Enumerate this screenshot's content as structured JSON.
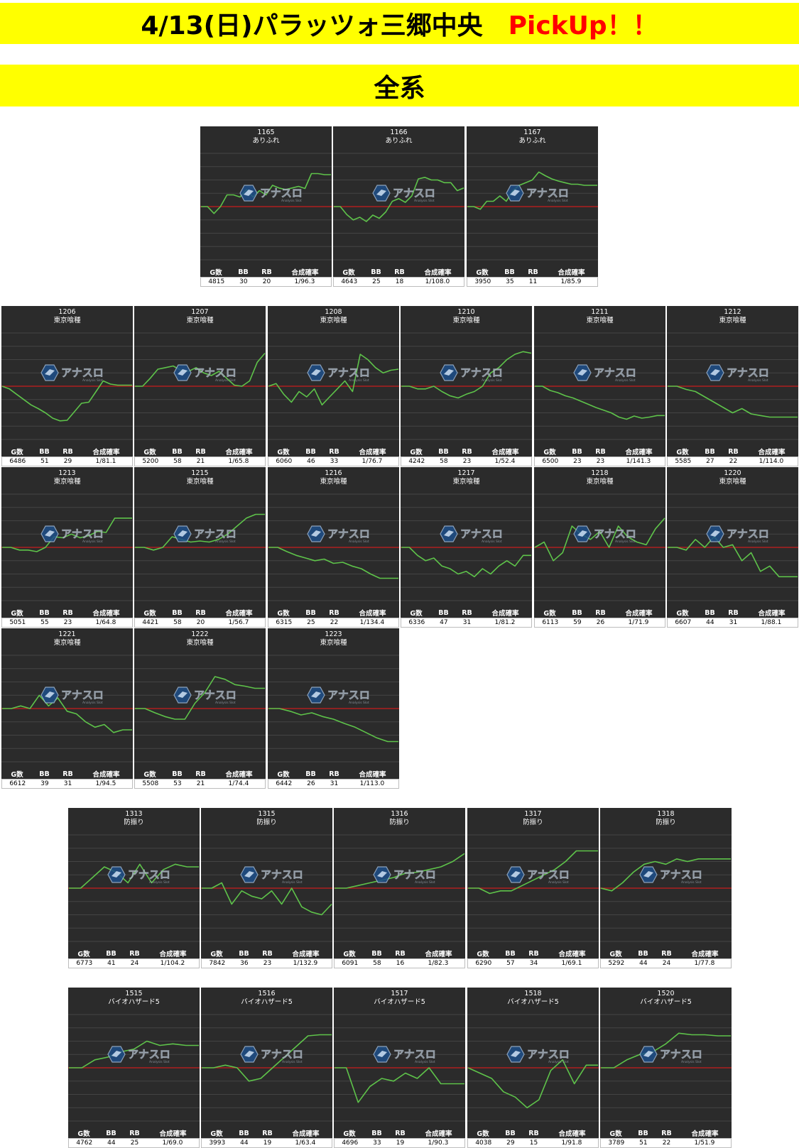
{
  "header": {
    "title": "4/13(日)パラッツォ三郷中央",
    "pickup": "PickUp！！",
    "section": "全系"
  },
  "stat_headers": [
    "G数",
    "BB",
    "RB",
    "合成確率"
  ],
  "watermark": {
    "text": "アナスロ",
    "sub": "Analysis Slot"
  },
  "colors": {
    "banner": "#ffff00",
    "pickup": "#ff0000",
    "panel": "#2b2b2b",
    "line": "#5ec34a",
    "baseline": "#c81e1e",
    "grid": "#444444"
  },
  "chart_data": [
    {
      "type": "line",
      "machine": "1165",
      "model": "ありふれ",
      "stats": {
        "games": "4815",
        "bb": "30",
        "rb": "20",
        "rate": "1/96.3"
      },
      "ylim": [
        -1,
        1
      ],
      "y": [
        0.0,
        0.0,
        -0.13,
        0.0,
        0.22,
        0.22,
        0.18,
        0.32,
        0.18,
        0.3,
        0.22,
        0.4,
        0.35,
        0.32,
        0.35,
        0.38,
        0.34,
        0.62,
        0.62,
        0.6,
        0.6
      ]
    },
    {
      "type": "line",
      "machine": "1166",
      "model": "ありふれ",
      "stats": {
        "games": "4643",
        "bb": "25",
        "rb": "18",
        "rate": "1/108.0"
      },
      "ylim": [
        -1,
        1
      ],
      "y": [
        0.0,
        0.0,
        -0.15,
        -0.25,
        -0.2,
        -0.28,
        -0.16,
        -0.22,
        -0.1,
        0.1,
        0.15,
        0.08,
        0.2,
        0.52,
        0.55,
        0.5,
        0.5,
        0.45,
        0.45,
        0.3,
        0.35
      ]
    },
    {
      "type": "line",
      "machine": "1167",
      "model": "ありふれ",
      "stats": {
        "games": "3950",
        "bb": "35",
        "rb": "11",
        "rate": "1/85.9"
      },
      "ylim": [
        -1,
        1
      ],
      "y": [
        0.0,
        0.0,
        -0.05,
        0.1,
        0.1,
        0.2,
        0.1,
        0.3,
        0.4,
        0.45,
        0.5,
        0.65,
        0.58,
        0.52,
        0.48,
        0.45,
        0.42,
        0.42,
        0.4,
        0.4,
        0.4
      ]
    },
    {
      "type": "line",
      "machine": "1206",
      "model": "東京喰種",
      "stats": {
        "games": "6486",
        "bb": "51",
        "rb": "29",
        "rate": "1/81.1"
      },
      "ylim": [
        -1,
        1
      ],
      "y": [
        0.0,
        -0.05,
        -0.15,
        -0.25,
        -0.35,
        -0.42,
        -0.5,
        -0.6,
        -0.65,
        -0.64,
        -0.48,
        -0.32,
        -0.3,
        -0.1,
        0.1,
        0.04,
        0.02,
        0.02,
        0.02
      ]
    },
    {
      "type": "line",
      "machine": "1207",
      "model": "東京喰種",
      "stats": {
        "games": "5200",
        "bb": "58",
        "rb": "21",
        "rate": "1/65.8"
      },
      "ylim": [
        -1,
        1
      ],
      "y": [
        0.0,
        0.0,
        0.15,
        0.32,
        0.35,
        0.38,
        0.3,
        0.28,
        0.35,
        0.25,
        0.2,
        0.28,
        0.15,
        0.02,
        0.0,
        0.1,
        0.45,
        0.62
      ]
    },
    {
      "type": "line",
      "machine": "1208",
      "model": "東京喰種",
      "stats": {
        "games": "6060",
        "bb": "46",
        "rb": "33",
        "rate": "1/76.7"
      },
      "ylim": [
        -1,
        1
      ],
      "y": [
        0.0,
        0.05,
        -0.15,
        -0.3,
        -0.1,
        -0.2,
        -0.05,
        -0.35,
        -0.2,
        -0.05,
        0.1,
        -0.1,
        0.6,
        0.5,
        0.35,
        0.25,
        0.3,
        0.32
      ]
    },
    {
      "type": "line",
      "machine": "1210",
      "model": "東京喰種",
      "stats": {
        "games": "4242",
        "bb": "58",
        "rb": "23",
        "rate": "1/52.4"
      },
      "ylim": [
        -1,
        1
      ],
      "y": [
        0.0,
        0.0,
        -0.05,
        -0.05,
        0.0,
        -0.1,
        -0.18,
        -0.22,
        -0.15,
        -0.1,
        0.0,
        0.25,
        0.35,
        0.5,
        0.6,
        0.65,
        0.62
      ]
    },
    {
      "type": "line",
      "machine": "1211",
      "model": "東京喰種",
      "stats": {
        "games": "6500",
        "bb": "23",
        "rb": "23",
        "rate": "1/141.3"
      },
      "ylim": [
        -1,
        1
      ],
      "y": [
        0.0,
        0.0,
        -0.08,
        -0.12,
        -0.18,
        -0.22,
        -0.28,
        -0.34,
        -0.4,
        -0.45,
        -0.5,
        -0.58,
        -0.62,
        -0.56,
        -0.6,
        -0.58,
        -0.55,
        -0.55
      ]
    },
    {
      "type": "line",
      "machine": "1212",
      "model": "東京喰種",
      "stats": {
        "games": "5585",
        "bb": "27",
        "rb": "22",
        "rate": "1/114.0"
      },
      "ylim": [
        -1,
        1
      ],
      "y": [
        0.0,
        0.0,
        -0.06,
        -0.1,
        -0.2,
        -0.3,
        -0.4,
        -0.5,
        -0.42,
        -0.52,
        -0.55,
        -0.58,
        -0.58,
        -0.58,
        -0.58
      ]
    },
    {
      "type": "line",
      "machine": "1213",
      "model": "東京喰種",
      "stats": {
        "games": "5051",
        "bb": "55",
        "rb": "23",
        "rate": "1/64.8"
      },
      "ylim": [
        -1,
        1
      ],
      "y": [
        0.0,
        0.0,
        -0.05,
        -0.05,
        -0.08,
        0.0,
        0.2,
        0.18,
        0.25,
        0.18,
        0.22,
        0.3,
        0.28,
        0.55,
        0.55,
        0.55
      ]
    },
    {
      "type": "line",
      "machine": "1215",
      "model": "東京喰種",
      "stats": {
        "games": "4421",
        "bb": "58",
        "rb": "20",
        "rate": "1/56.7"
      },
      "ylim": [
        -1,
        1
      ],
      "y": [
        0.0,
        0.0,
        -0.05,
        0.0,
        0.2,
        0.15,
        0.1,
        0.12,
        0.1,
        0.15,
        0.25,
        0.4,
        0.55,
        0.62,
        0.62
      ]
    },
    {
      "type": "line",
      "machine": "1216",
      "model": "東京喰種",
      "stats": {
        "games": "6315",
        "bb": "25",
        "rb": "22",
        "rate": "1/134.4"
      },
      "ylim": [
        -1,
        1
      ],
      "y": [
        0.0,
        0.0,
        -0.08,
        -0.15,
        -0.2,
        -0.25,
        -0.22,
        -0.3,
        -0.28,
        -0.35,
        -0.4,
        -0.5,
        -0.58,
        -0.58,
        -0.58
      ]
    },
    {
      "type": "line",
      "machine": "1217",
      "model": "東京喰種",
      "stats": {
        "games": "6336",
        "bb": "47",
        "rb": "31",
        "rate": "1/81.2"
      },
      "ylim": [
        -1,
        1
      ],
      "y": [
        0.0,
        0.0,
        -0.15,
        -0.25,
        -0.2,
        -0.35,
        -0.4,
        -0.5,
        -0.45,
        -0.55,
        -0.4,
        -0.5,
        -0.35,
        -0.25,
        -0.35,
        -0.15,
        -0.15
      ]
    },
    {
      "type": "line",
      "machine": "1218",
      "model": "東京喰種",
      "stats": {
        "games": "6113",
        "bb": "59",
        "rb": "26",
        "rate": "1/71.9"
      },
      "ylim": [
        -1,
        1
      ],
      "y": [
        0.0,
        0.1,
        -0.25,
        -0.1,
        0.4,
        0.25,
        0.15,
        0.3,
        0.0,
        0.4,
        0.2,
        0.1,
        0.05,
        0.35,
        0.55
      ]
    },
    {
      "type": "line",
      "machine": "1220",
      "model": "東京喰種",
      "stats": {
        "games": "6607",
        "bb": "44",
        "rb": "31",
        "rate": "1/88.1"
      },
      "ylim": [
        -1,
        1
      ],
      "y": [
        0.0,
        0.0,
        -0.05,
        0.15,
        0.0,
        0.2,
        0.0,
        0.05,
        -0.25,
        -0.1,
        -0.45,
        -0.35,
        -0.55,
        -0.55,
        -0.55
      ]
    },
    {
      "type": "line",
      "machine": "1221",
      "model": "東京喰種",
      "stats": {
        "games": "6612",
        "bb": "39",
        "rb": "31",
        "rate": "1/94.5"
      },
      "ylim": [
        -1,
        1
      ],
      "y": [
        0.0,
        0.0,
        0.05,
        0.0,
        0.25,
        0.05,
        0.2,
        -0.05,
        -0.1,
        -0.25,
        -0.35,
        -0.3,
        -0.45,
        -0.4,
        -0.4
      ]
    },
    {
      "type": "line",
      "machine": "1222",
      "model": "東京喰種",
      "stats": {
        "games": "5508",
        "bb": "53",
        "rb": "21",
        "rate": "1/74.4"
      },
      "ylim": [
        -1,
        1
      ],
      "y": [
        0.0,
        0.0,
        -0.08,
        -0.15,
        -0.2,
        -0.2,
        0.1,
        0.3,
        0.6,
        0.55,
        0.45,
        0.42,
        0.38,
        0.38
      ]
    },
    {
      "type": "line",
      "machine": "1223",
      "model": "東京喰種",
      "stats": {
        "games": "6442",
        "bb": "26",
        "rb": "31",
        "rate": "1/113.0"
      },
      "ylim": [
        -1,
        1
      ],
      "y": [
        0.0,
        0.0,
        -0.05,
        -0.12,
        -0.08,
        -0.15,
        -0.2,
        -0.28,
        -0.35,
        -0.45,
        -0.55,
        -0.62,
        -0.62
      ]
    },
    {
      "type": "line",
      "machine": "1313",
      "model": "防振り",
      "stats": {
        "games": "6773",
        "bb": "41",
        "rb": "24",
        "rate": "1/104.2"
      },
      "ylim": [
        -1,
        1
      ],
      "y": [
        0.0,
        0.0,
        0.2,
        0.4,
        0.3,
        0.1,
        0.45,
        0.1,
        0.35,
        0.45,
        0.4,
        0.4
      ]
    },
    {
      "type": "line",
      "machine": "1315",
      "model": "防振り",
      "stats": {
        "games": "7842",
        "bb": "36",
        "rb": "23",
        "rate": "1/132.9"
      },
      "ylim": [
        -1,
        1
      ],
      "y": [
        0.0,
        0.0,
        0.1,
        -0.3,
        -0.05,
        -0.15,
        -0.2,
        -0.05,
        -0.3,
        0.0,
        -0.35,
        -0.45,
        -0.5,
        -0.3
      ]
    },
    {
      "type": "line",
      "machine": "1316",
      "model": "防振り",
      "stats": {
        "games": "6091",
        "bb": "58",
        "rb": "16",
        "rate": "1/82.3"
      },
      "ylim": [
        -1,
        1
      ],
      "y": [
        0.0,
        0.0,
        0.05,
        0.1,
        0.15,
        0.2,
        0.28,
        0.3,
        0.35,
        0.4,
        0.5,
        0.65
      ]
    },
    {
      "type": "line",
      "machine": "1317",
      "model": "防振り",
      "stats": {
        "games": "6290",
        "bb": "57",
        "rb": "34",
        "rate": "1/69.1"
      },
      "ylim": [
        -1,
        1
      ],
      "y": [
        0.0,
        0.0,
        -0.1,
        -0.05,
        -0.05,
        0.05,
        0.15,
        0.25,
        0.35,
        0.5,
        0.7,
        0.7,
        0.7
      ]
    },
    {
      "type": "line",
      "machine": "1318",
      "model": "防振り",
      "stats": {
        "games": "5292",
        "bb": "44",
        "rb": "24",
        "rate": "1/77.8"
      },
      "ylim": [
        -1,
        1
      ],
      "y": [
        0.0,
        -0.05,
        0.1,
        0.3,
        0.45,
        0.5,
        0.45,
        0.55,
        0.5,
        0.55,
        0.55,
        0.55,
        0.55
      ]
    },
    {
      "type": "line",
      "machine": "1515",
      "model": "バイオハザード5",
      "stats": {
        "games": "4762",
        "bb": "44",
        "rb": "25",
        "rate": "1/69.0"
      },
      "ylim": [
        -1,
        1
      ],
      "y": [
        0.0,
        0.0,
        0.15,
        0.2,
        0.3,
        0.35,
        0.5,
        0.42,
        0.45,
        0.42,
        0.42
      ]
    },
    {
      "type": "line",
      "machine": "1516",
      "model": "バイオハザード5",
      "stats": {
        "games": "3993",
        "bb": "44",
        "rb": "19",
        "rate": "1/63.4"
      },
      "ylim": [
        -1,
        1
      ],
      "y": [
        0.0,
        0.0,
        0.05,
        0.0,
        -0.25,
        -0.2,
        0.0,
        0.2,
        0.4,
        0.6,
        0.62,
        0.62
      ]
    },
    {
      "type": "line",
      "machine": "1517",
      "model": "バイオハザード5",
      "stats": {
        "games": "4696",
        "bb": "33",
        "rb": "19",
        "rate": "1/90.3"
      },
      "ylim": [
        -1,
        1
      ],
      "y": [
        0.0,
        0.0,
        -0.65,
        -0.35,
        -0.2,
        -0.25,
        -0.1,
        -0.2,
        0.0,
        -0.3,
        -0.3,
        -0.3
      ]
    },
    {
      "type": "line",
      "machine": "1518",
      "model": "バイオハザード5",
      "stats": {
        "games": "4038",
        "bb": "29",
        "rb": "15",
        "rate": "1/91.8"
      },
      "ylim": [
        -1,
        1
      ],
      "y": [
        0.0,
        -0.1,
        -0.2,
        -0.45,
        -0.55,
        -0.75,
        -0.6,
        -0.05,
        0.15,
        -0.3,
        0.05,
        0.05
      ]
    },
    {
      "type": "line",
      "machine": "1520",
      "model": "バイオハザード5",
      "stats": {
        "games": "3789",
        "bb": "51",
        "rb": "22",
        "rate": "1/51.9"
      },
      "ylim": [
        -1,
        1
      ],
      "y": [
        0.0,
        0.0,
        0.15,
        0.25,
        0.3,
        0.45,
        0.65,
        0.62,
        0.62,
        0.6,
        0.6
      ]
    }
  ]
}
